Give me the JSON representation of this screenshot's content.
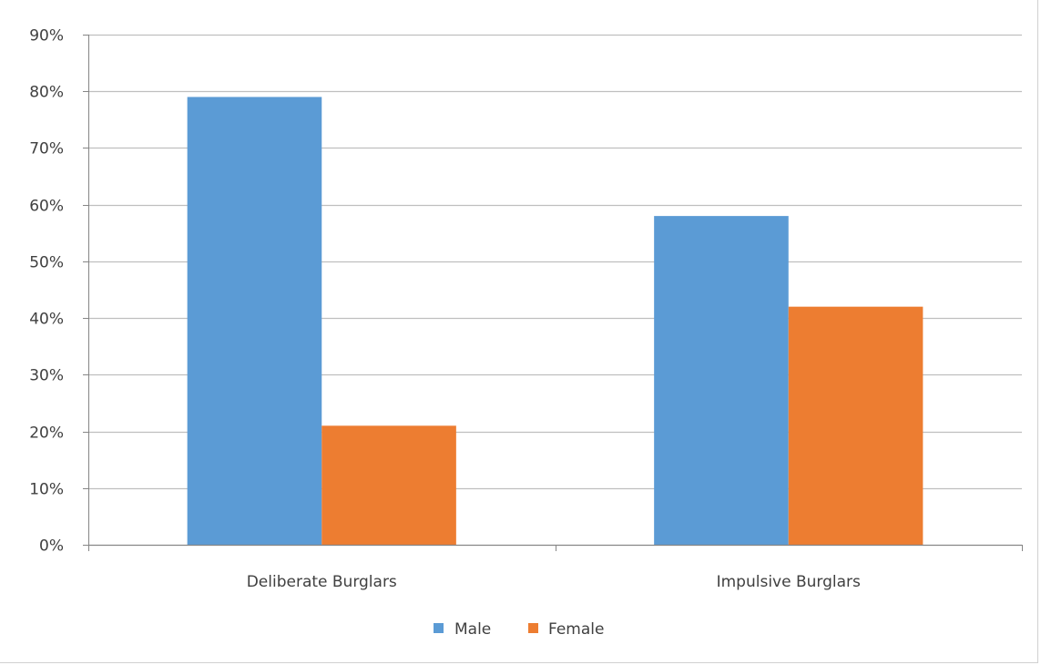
{
  "chart_data": {
    "type": "bar",
    "categories": [
      "Deliberate Burglars",
      "Impulsive Burglars"
    ],
    "series": [
      {
        "name": "Male",
        "values": [
          79,
          58
        ],
        "color": "#5B9BD5"
      },
      {
        "name": "Female",
        "values": [
          21,
          42
        ],
        "color": "#ED7D31"
      }
    ],
    "y_ticks": [
      "0%",
      "10%",
      "20%",
      "30%",
      "40%",
      "50%",
      "60%",
      "70%",
      "80%",
      "90%"
    ],
    "ylim": [
      0,
      90
    ],
    "y_unit": "percent",
    "grid": true,
    "legend_position": "bottom",
    "colors": {
      "gridline": "#bfbfbf",
      "axis": "#868686",
      "text": "#404040"
    }
  }
}
